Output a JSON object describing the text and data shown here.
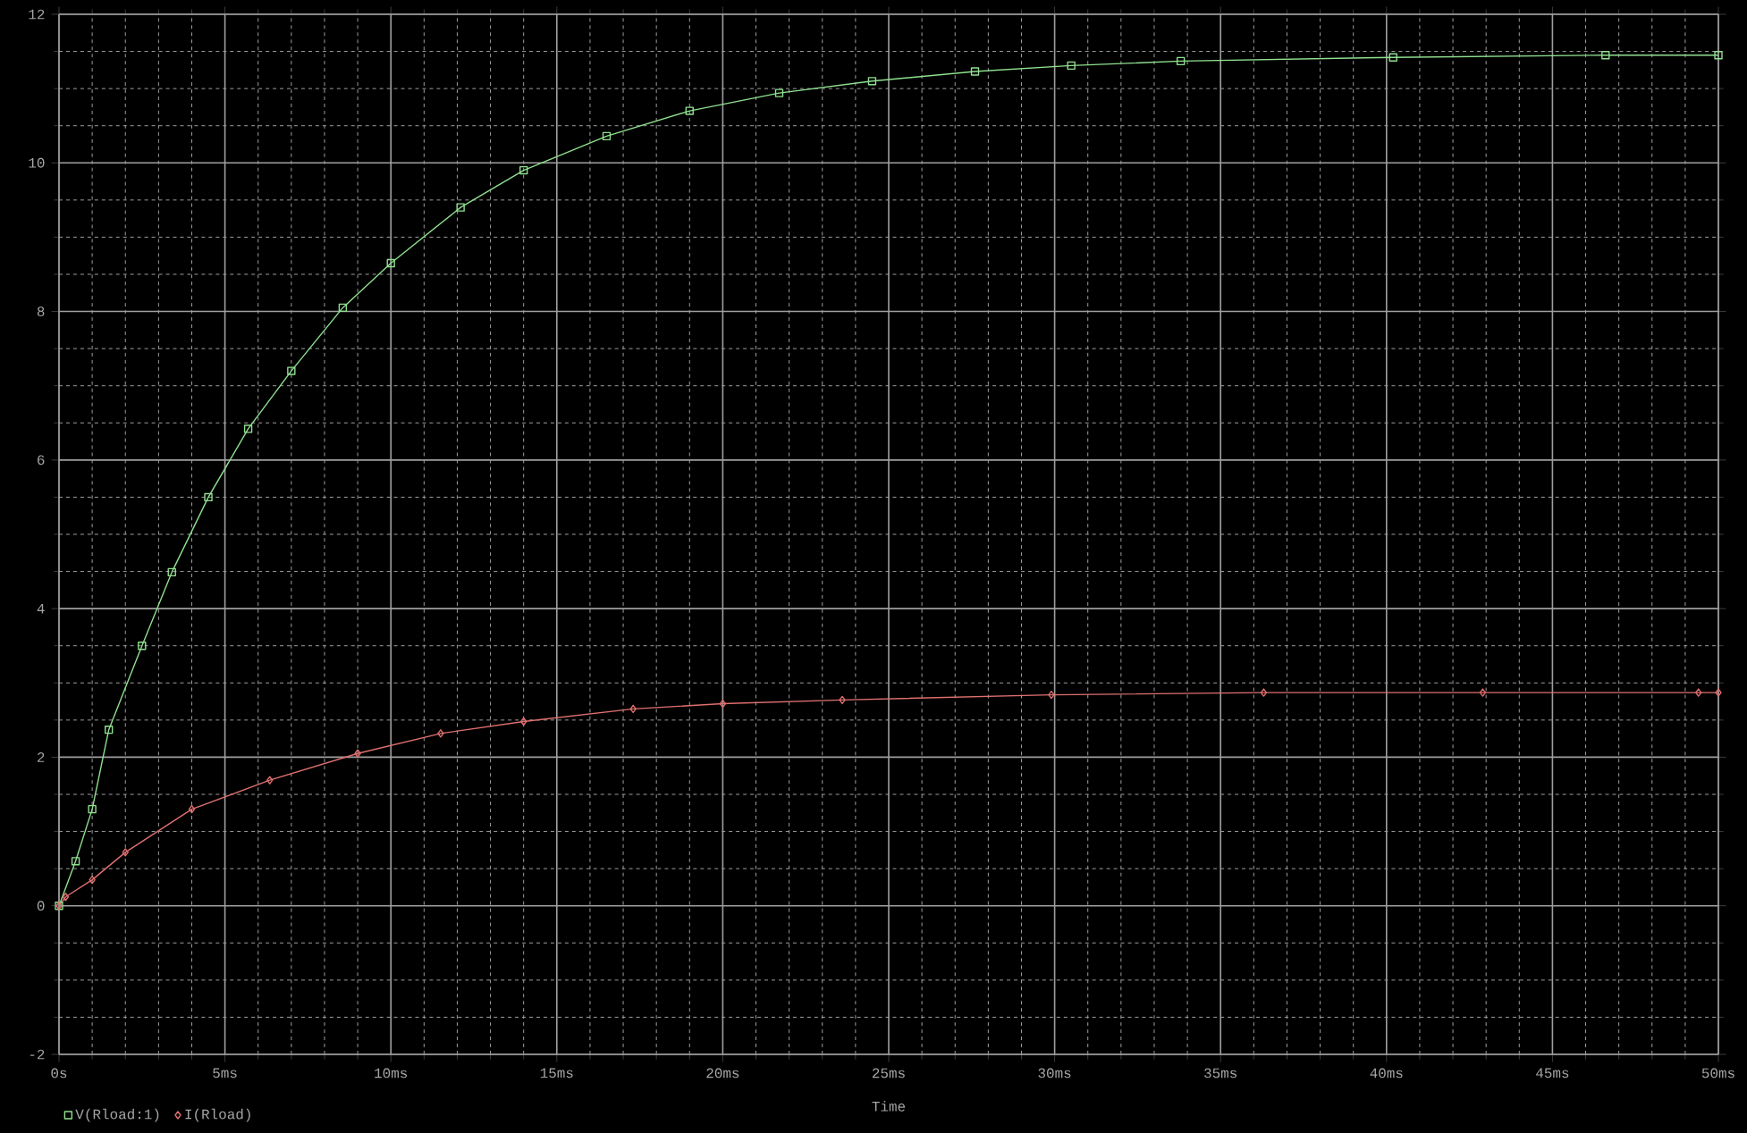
{
  "chart_data": {
    "type": "line",
    "xlabel": "Time",
    "xlim": [
      0,
      50
    ],
    "ylim": [
      -2,
      12
    ],
    "xticks": [
      {
        "value": 0,
        "label": "0s"
      },
      {
        "value": 5,
        "label": "5ms"
      },
      {
        "value": 10,
        "label": "10ms"
      },
      {
        "value": 15,
        "label": "15ms"
      },
      {
        "value": 20,
        "label": "20ms"
      },
      {
        "value": 25,
        "label": "25ms"
      },
      {
        "value": 30,
        "label": "30ms"
      },
      {
        "value": 35,
        "label": "35ms"
      },
      {
        "value": 40,
        "label": "40ms"
      },
      {
        "value": 45,
        "label": "45ms"
      },
      {
        "value": 50,
        "label": "50ms"
      }
    ],
    "yticks": [
      -2,
      0,
      2,
      4,
      6,
      8,
      10,
      12
    ],
    "grid": true,
    "legend": "bottom left",
    "line_style": "solid",
    "series": [
      {
        "name": "V(Rload:1)",
        "color": "#90e090",
        "marker": "square",
        "x": [
          0,
          0.5,
          1,
          1.5,
          2.5,
          3.4,
          4.5,
          5.7,
          7,
          8.55,
          10,
          12.1,
          14,
          16.5,
          19,
          21.7,
          24.5,
          27.6,
          30.5,
          33.8,
          40.2,
          46.6,
          50
        ],
        "values": [
          0,
          0.6,
          1.3,
          2.37,
          3.5,
          4.49,
          5.5,
          6.42,
          7.2,
          8.05,
          8.65,
          9.4,
          9.9,
          10.36,
          10.7,
          10.94,
          11.1,
          11.23,
          11.31,
          11.37,
          11.42,
          11.45,
          11.45
        ]
      },
      {
        "name": "I(Rload)",
        "color": "#e07070",
        "marker": "diamond",
        "x": [
          0,
          0.2,
          1,
          2,
          4,
          6.35,
          9,
          11.5,
          14,
          17.3,
          20,
          23.6,
          29.9,
          36.3,
          42.9,
          49.4,
          50
        ],
        "values": [
          0,
          0.12,
          0.35,
          0.72,
          1.3,
          1.69,
          2.05,
          2.32,
          2.48,
          2.65,
          2.72,
          2.77,
          2.84,
          2.87,
          2.87,
          2.87,
          2.87
        ]
      }
    ]
  }
}
